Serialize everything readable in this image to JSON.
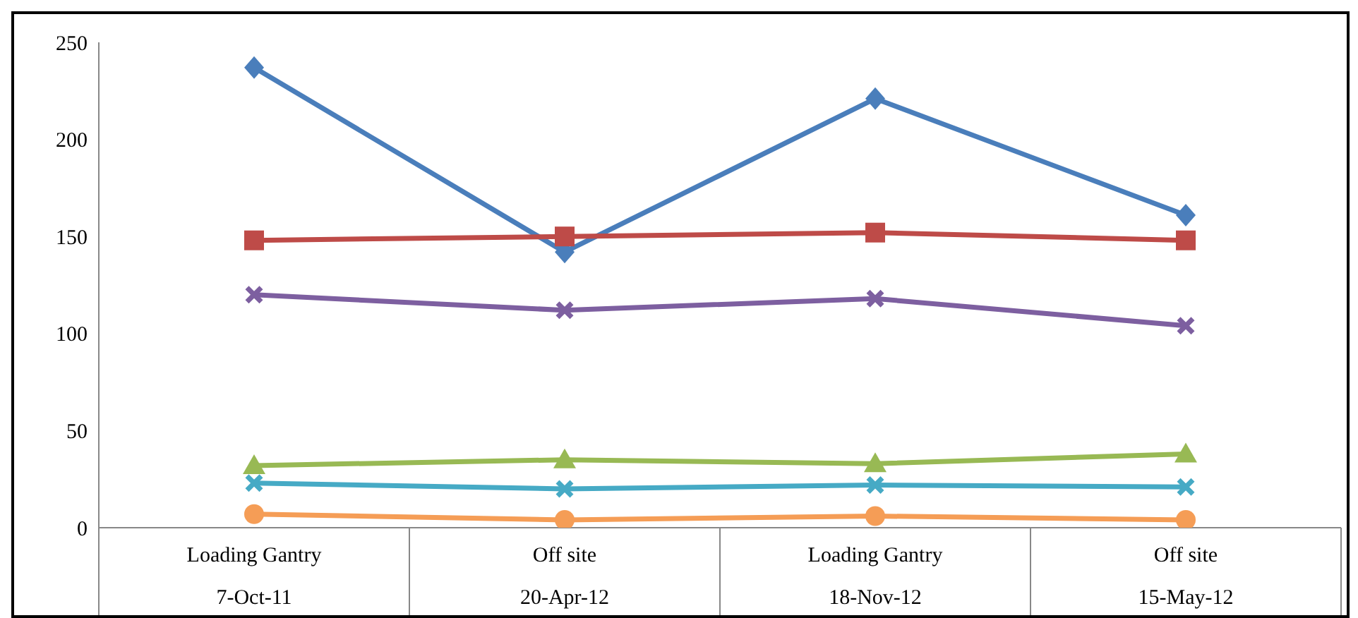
{
  "chart_data": {
    "type": "line",
    "categories": [
      "Loading Gantry\n7-Oct-11",
      "Off site\n20-Apr-12",
      "Loading Gantry\n18-Nov-12",
      "Off site\n15-May-12"
    ],
    "series": [
      {
        "color": "#4a7ebb",
        "marker": "diamond",
        "values": [
          237,
          142,
          221,
          161
        ]
      },
      {
        "color": "#be4b48",
        "marker": "square",
        "values": [
          148,
          150,
          152,
          148
        ]
      },
      {
        "color": "#7d5fa0",
        "marker": "cross",
        "values": [
          120,
          112,
          118,
          104
        ]
      },
      {
        "color": "#98b954",
        "marker": "triangle",
        "values": [
          32,
          35,
          33,
          38
        ]
      },
      {
        "color": "#46aac5",
        "marker": "cross",
        "values": [
          23,
          20,
          22,
          21
        ]
      },
      {
        "color": "#f59d56",
        "marker": "circle",
        "values": [
          7,
          4,
          6,
          4
        ]
      }
    ],
    "ylim": [
      0,
      250
    ],
    "yticks": [
      0,
      50,
      100,
      150,
      200,
      250
    ],
    "line_style": "solid"
  }
}
